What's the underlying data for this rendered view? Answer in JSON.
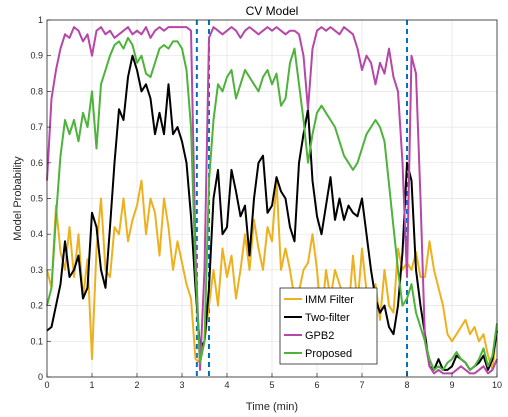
{
  "chart_data": {
    "type": "line",
    "title": "CV Model",
    "xlabel": "Time (min)",
    "ylabel": "Model Probability",
    "xlim": [
      0,
      10
    ],
    "ylim": [
      0,
      1
    ],
    "xticks": [
      "0",
      "1",
      "2",
      "3",
      "4",
      "5",
      "6",
      "7",
      "8",
      "9",
      "10"
    ],
    "yticks": [
      "0",
      "0.1",
      "0.2",
      "0.3",
      "0.4",
      "0.5",
      "0.6",
      "0.7",
      "0.8",
      "0.9",
      "1"
    ],
    "grid": true,
    "legend_position": "bottom-center",
    "vlines": {
      "color": "#0072BD",
      "style": "dashed",
      "x": [
        3.33,
        3.6,
        8.0
      ]
    },
    "series": [
      {
        "name": "IMM Filter",
        "color": "#EDB120",
        "x": [
          0,
          0.1,
          0.2,
          0.3,
          0.4,
          0.5,
          0.6,
          0.7,
          0.8,
          0.9,
          1.0,
          1.1,
          1.2,
          1.3,
          1.4,
          1.5,
          1.6,
          1.7,
          1.8,
          1.9,
          2.0,
          2.1,
          2.2,
          2.3,
          2.4,
          2.5,
          2.6,
          2.7,
          2.8,
          2.9,
          3.0,
          3.1,
          3.2,
          3.3,
          3.4,
          3.5,
          3.6,
          3.7,
          3.8,
          3.9,
          4.0,
          4.1,
          4.2,
          4.3,
          4.4,
          4.5,
          4.6,
          4.7,
          4.8,
          4.9,
          5.0,
          5.1,
          5.2,
          5.3,
          5.4,
          5.5,
          5.6,
          5.7,
          5.8,
          5.9,
          6.0,
          6.1,
          6.2,
          6.3,
          6.4,
          6.5,
          6.6,
          6.7,
          6.8,
          6.9,
          7.0,
          7.1,
          7.2,
          7.3,
          7.4,
          7.5,
          7.6,
          7.7,
          7.8,
          7.9,
          8.0,
          8.1,
          8.2,
          8.3,
          8.4,
          8.5,
          8.6,
          8.7,
          8.8,
          8.9,
          9.0,
          9.1,
          9.2,
          9.3,
          9.4,
          9.5,
          9.6,
          9.7,
          9.8,
          9.9,
          10.0
        ],
        "y": [
          0.3,
          0.25,
          0.48,
          0.35,
          0.3,
          0.42,
          0.28,
          0.4,
          0.22,
          0.33,
          0.05,
          0.36,
          0.5,
          0.3,
          0.28,
          0.42,
          0.4,
          0.5,
          0.38,
          0.44,
          0.48,
          0.55,
          0.4,
          0.5,
          0.46,
          0.34,
          0.5,
          0.42,
          0.3,
          0.38,
          0.32,
          0.26,
          0.22,
          0.05,
          0.04,
          0.1,
          0.2,
          0.3,
          0.2,
          0.36,
          0.28,
          0.34,
          0.22,
          0.3,
          0.4,
          0.3,
          0.44,
          0.36,
          0.3,
          0.42,
          0.38,
          0.55,
          0.3,
          0.36,
          0.3,
          0.22,
          0.24,
          0.3,
          0.32,
          0.4,
          0.3,
          0.16,
          0.3,
          0.22,
          0.3,
          0.26,
          0.22,
          0.18,
          0.34,
          0.2,
          0.36,
          0.24,
          0.2,
          0.26,
          0.16,
          0.3,
          0.2,
          0.18,
          0.36,
          0.3,
          0.32,
          0.3,
          0.35,
          0.28,
          0.28,
          0.38,
          0.3,
          0.25,
          0.2,
          0.12,
          0.1,
          0.12,
          0.14,
          0.16,
          0.12,
          0.14,
          0.1,
          0.12,
          0.06,
          0.02,
          0.14
        ]
      },
      {
        "name": "Two-filter",
        "color": "#000000",
        "x": [
          0,
          0.1,
          0.2,
          0.3,
          0.4,
          0.5,
          0.6,
          0.7,
          0.8,
          0.9,
          1.0,
          1.1,
          1.2,
          1.3,
          1.4,
          1.5,
          1.6,
          1.7,
          1.8,
          1.9,
          2.0,
          2.1,
          2.2,
          2.3,
          2.4,
          2.5,
          2.6,
          2.7,
          2.8,
          2.9,
          3.0,
          3.1,
          3.2,
          3.3,
          3.4,
          3.5,
          3.6,
          3.7,
          3.8,
          3.9,
          4.0,
          4.1,
          4.2,
          4.3,
          4.4,
          4.5,
          4.6,
          4.7,
          4.8,
          4.9,
          5.0,
          5.1,
          5.2,
          5.3,
          5.4,
          5.5,
          5.6,
          5.7,
          5.8,
          5.9,
          6.0,
          6.1,
          6.2,
          6.3,
          6.4,
          6.5,
          6.6,
          6.7,
          6.8,
          6.9,
          7.0,
          7.1,
          7.2,
          7.3,
          7.4,
          7.5,
          7.6,
          7.7,
          7.8,
          7.9,
          8.0,
          8.1,
          8.2,
          8.3,
          8.4,
          8.5,
          8.6,
          8.7,
          8.8,
          8.9,
          9.0,
          9.1,
          9.2,
          9.3,
          9.4,
          9.5,
          9.6,
          9.7,
          9.8,
          9.9,
          10.0
        ],
        "y": [
          0.13,
          0.14,
          0.2,
          0.26,
          0.38,
          0.28,
          0.3,
          0.34,
          0.22,
          0.25,
          0.46,
          0.42,
          0.3,
          0.25,
          0.42,
          0.6,
          0.75,
          0.72,
          0.84,
          0.9,
          0.86,
          0.8,
          0.82,
          0.78,
          0.68,
          0.74,
          0.68,
          0.82,
          0.68,
          0.7,
          0.66,
          0.6,
          0.45,
          0.25,
          0.08,
          0.1,
          0.25,
          0.5,
          0.58,
          0.4,
          0.42,
          0.58,
          0.52,
          0.45,
          0.48,
          0.34,
          0.5,
          0.6,
          0.62,
          0.46,
          0.48,
          0.56,
          0.52,
          0.5,
          0.42,
          0.38,
          0.6,
          0.68,
          0.75,
          0.55,
          0.45,
          0.4,
          0.48,
          0.56,
          0.44,
          0.5,
          0.44,
          0.48,
          0.46,
          0.45,
          0.5,
          0.4,
          0.3,
          0.22,
          0.18,
          0.2,
          0.14,
          0.12,
          0.2,
          0.35,
          0.6,
          0.55,
          0.3,
          0.2,
          0.12,
          0.03,
          0.02,
          0.05,
          0.02,
          0.02,
          0.03,
          0.06,
          0.05,
          0.04,
          0.02,
          0.03,
          0.04,
          0.06,
          0.02,
          0.05,
          0.13
        ]
      },
      {
        "name": "GPB2",
        "color": "#B646A8",
        "x": [
          0,
          0.1,
          0.2,
          0.3,
          0.4,
          0.5,
          0.6,
          0.7,
          0.8,
          0.9,
          1.0,
          1.1,
          1.2,
          1.3,
          1.4,
          1.5,
          1.6,
          1.7,
          1.8,
          1.9,
          2.0,
          2.1,
          2.2,
          2.3,
          2.4,
          2.5,
          2.6,
          2.7,
          2.8,
          2.9,
          3.0,
          3.1,
          3.2,
          3.3,
          3.4,
          3.5,
          3.6,
          3.7,
          3.8,
          3.9,
          4.0,
          4.1,
          4.2,
          4.3,
          4.4,
          4.5,
          4.6,
          4.7,
          4.8,
          4.9,
          5.0,
          5.1,
          5.2,
          5.3,
          5.4,
          5.5,
          5.6,
          5.7,
          5.8,
          5.9,
          6.0,
          6.1,
          6.2,
          6.3,
          6.4,
          6.5,
          6.6,
          6.7,
          6.8,
          6.9,
          7.0,
          7.1,
          7.2,
          7.3,
          7.4,
          7.5,
          7.6,
          7.7,
          7.8,
          7.9,
          8.0,
          8.1,
          8.2,
          8.3,
          8.4,
          8.5,
          8.6,
          8.7,
          8.8,
          8.9,
          9.0,
          9.1,
          9.2,
          9.3,
          9.4,
          9.5,
          9.6,
          9.7,
          9.8,
          9.9,
          10.0
        ],
        "y": [
          0.55,
          0.78,
          0.86,
          0.92,
          0.96,
          0.95,
          0.98,
          0.97,
          0.94,
          0.96,
          0.9,
          0.97,
          0.98,
          0.96,
          0.97,
          0.95,
          0.96,
          0.97,
          0.98,
          0.96,
          0.97,
          0.96,
          0.98,
          0.95,
          0.97,
          0.98,
          0.97,
          0.98,
          0.98,
          0.98,
          0.98,
          0.98,
          0.97,
          0.35,
          0.02,
          0.3,
          0.95,
          0.98,
          0.97,
          0.96,
          0.97,
          0.98,
          0.97,
          0.95,
          0.97,
          0.98,
          0.97,
          0.96,
          0.97,
          0.98,
          0.97,
          0.98,
          0.97,
          0.96,
          0.97,
          0.97,
          0.96,
          0.9,
          0.75,
          0.92,
          0.97,
          0.98,
          0.97,
          0.98,
          0.97,
          0.96,
          0.98,
          0.97,
          0.96,
          0.92,
          0.86,
          0.9,
          0.88,
          0.82,
          0.88,
          0.85,
          0.92,
          0.84,
          0.8,
          0.6,
          0.28,
          0.9,
          0.85,
          0.5,
          0.1,
          0.03,
          0.01,
          0.02,
          0.01,
          0.01,
          0.01,
          0.02,
          0.03,
          0.02,
          0.01,
          0.01,
          0.02,
          0.03,
          0.01,
          0.02,
          0.05
        ]
      },
      {
        "name": "Proposed",
        "color": "#4DB33A",
        "x": [
          0,
          0.1,
          0.2,
          0.3,
          0.4,
          0.5,
          0.6,
          0.7,
          0.8,
          0.9,
          1.0,
          1.1,
          1.2,
          1.3,
          1.4,
          1.5,
          1.6,
          1.7,
          1.8,
          1.9,
          2.0,
          2.1,
          2.2,
          2.3,
          2.4,
          2.5,
          2.6,
          2.7,
          2.8,
          2.9,
          3.0,
          3.1,
          3.2,
          3.3,
          3.4,
          3.5,
          3.6,
          3.7,
          3.8,
          3.9,
          4.0,
          4.1,
          4.2,
          4.3,
          4.4,
          4.5,
          4.6,
          4.7,
          4.8,
          4.9,
          5.0,
          5.1,
          5.2,
          5.3,
          5.4,
          5.5,
          5.6,
          5.7,
          5.8,
          5.9,
          6.0,
          6.1,
          6.2,
          6.3,
          6.4,
          6.5,
          6.6,
          6.7,
          6.8,
          6.9,
          7.0,
          7.1,
          7.2,
          7.3,
          7.4,
          7.5,
          7.6,
          7.7,
          7.8,
          7.9,
          8.0,
          8.1,
          8.2,
          8.3,
          8.4,
          8.5,
          8.6,
          8.7,
          8.8,
          8.9,
          9.0,
          9.1,
          9.2,
          9.3,
          9.4,
          9.5,
          9.6,
          9.7,
          9.8,
          9.9,
          10.0
        ],
        "y": [
          0.2,
          0.25,
          0.45,
          0.62,
          0.72,
          0.68,
          0.72,
          0.66,
          0.74,
          0.7,
          0.8,
          0.64,
          0.82,
          0.86,
          0.9,
          0.93,
          0.94,
          0.92,
          0.95,
          0.93,
          0.88,
          0.9,
          0.85,
          0.84,
          0.88,
          0.92,
          0.93,
          0.92,
          0.94,
          0.94,
          0.92,
          0.86,
          0.7,
          0.3,
          0.04,
          0.1,
          0.55,
          0.72,
          0.82,
          0.8,
          0.84,
          0.86,
          0.78,
          0.82,
          0.86,
          0.84,
          0.82,
          0.8,
          0.84,
          0.86,
          0.82,
          0.85,
          0.76,
          0.78,
          0.88,
          0.92,
          0.82,
          0.72,
          0.6,
          0.68,
          0.74,
          0.76,
          0.74,
          0.72,
          0.7,
          0.66,
          0.62,
          0.6,
          0.58,
          0.6,
          0.64,
          0.68,
          0.7,
          0.72,
          0.7,
          0.66,
          0.54,
          0.42,
          0.3,
          0.2,
          0.22,
          0.26,
          0.18,
          0.14,
          0.1,
          0.05,
          0.02,
          0.03,
          0.02,
          0.04,
          0.05,
          0.07,
          0.05,
          0.04,
          0.02,
          0.03,
          0.05,
          0.08,
          0.03,
          0.06,
          0.15
        ]
      }
    ]
  }
}
